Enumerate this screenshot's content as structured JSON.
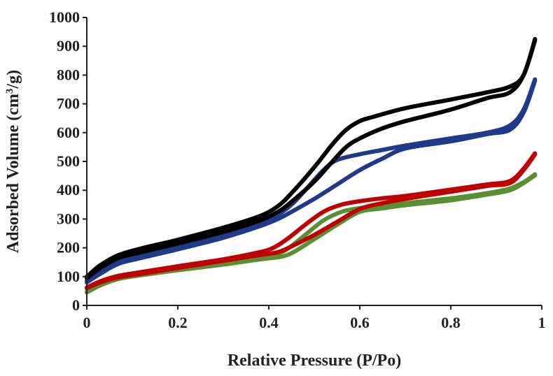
{
  "chart_data": {
    "type": "line",
    "title": "",
    "xlabel": "Relative Pressure (P/Po)",
    "ylabel_parts": [
      "Adsorbed Volume (cm",
      "3",
      "/g)"
    ],
    "xlim": [
      0,
      1
    ],
    "ylim": [
      0,
      1000
    ],
    "x_ticks": [
      "0",
      "0.2",
      "0.4",
      "0.6",
      "0.8",
      "1"
    ],
    "y_ticks": [
      "0",
      "100",
      "200",
      "300",
      "400",
      "500",
      "600",
      "700",
      "800",
      "900",
      "1000"
    ],
    "grid": false,
    "legend": "none",
    "series": [
      {
        "color": "#000000",
        "adsorption": [
          [
            0.0,
            95
          ],
          [
            0.03,
            130
          ],
          [
            0.07,
            165
          ],
          [
            0.12,
            185
          ],
          [
            0.2,
            215
          ],
          [
            0.3,
            255
          ],
          [
            0.38,
            295
          ],
          [
            0.42,
            325
          ],
          [
            0.45,
            360
          ],
          [
            0.5,
            430
          ],
          [
            0.54,
            500
          ],
          [
            0.57,
            550
          ],
          [
            0.6,
            580
          ],
          [
            0.65,
            615
          ],
          [
            0.7,
            640
          ],
          [
            0.8,
            680
          ],
          [
            0.88,
            720
          ],
          [
            0.93,
            740
          ],
          [
            0.96,
            800
          ],
          [
            0.985,
            920
          ]
        ],
        "desorption": [
          [
            0.985,
            925
          ],
          [
            0.96,
            800
          ],
          [
            0.93,
            760
          ],
          [
            0.88,
            740
          ],
          [
            0.8,
            715
          ],
          [
            0.7,
            685
          ],
          [
            0.63,
            655
          ],
          [
            0.6,
            640
          ],
          [
            0.57,
            610
          ],
          [
            0.54,
            560
          ],
          [
            0.5,
            480
          ],
          [
            0.45,
            390
          ],
          [
            0.42,
            345
          ],
          [
            0.38,
            310
          ],
          [
            0.3,
            270
          ],
          [
            0.2,
            228
          ],
          [
            0.12,
            198
          ],
          [
            0.07,
            175
          ],
          [
            0.03,
            140
          ],
          [
            0.0,
            100
          ]
        ]
      },
      {
        "color": "#1f3a8a",
        "adsorption": [
          [
            0.0,
            80
          ],
          [
            0.03,
            110
          ],
          [
            0.07,
            145
          ],
          [
            0.12,
            165
          ],
          [
            0.2,
            195
          ],
          [
            0.3,
            235
          ],
          [
            0.38,
            275
          ],
          [
            0.42,
            300
          ],
          [
            0.45,
            325
          ],
          [
            0.5,
            370
          ],
          [
            0.55,
            420
          ],
          [
            0.6,
            470
          ],
          [
            0.65,
            510
          ],
          [
            0.7,
            545
          ],
          [
            0.8,
            570
          ],
          [
            0.88,
            595
          ],
          [
            0.93,
            610
          ],
          [
            0.96,
            670
          ],
          [
            0.985,
            780
          ]
        ],
        "desorption": [
          [
            0.985,
            785
          ],
          [
            0.96,
            680
          ],
          [
            0.93,
            625
          ],
          [
            0.88,
            600
          ],
          [
            0.8,
            580
          ],
          [
            0.7,
            555
          ],
          [
            0.65,
            540
          ],
          [
            0.6,
            525
          ],
          [
            0.55,
            505
          ],
          [
            0.52,
            470
          ],
          [
            0.48,
            400
          ],
          [
            0.45,
            350
          ],
          [
            0.42,
            315
          ],
          [
            0.38,
            285
          ],
          [
            0.3,
            245
          ],
          [
            0.2,
            205
          ],
          [
            0.12,
            172
          ],
          [
            0.07,
            152
          ],
          [
            0.03,
            118
          ],
          [
            0.0,
            85
          ]
        ]
      },
      {
        "color": "#c00000",
        "adsorption": [
          [
            0.0,
            60
          ],
          [
            0.03,
            80
          ],
          [
            0.07,
            98
          ],
          [
            0.12,
            110
          ],
          [
            0.2,
            130
          ],
          [
            0.3,
            155
          ],
          [
            0.38,
            175
          ],
          [
            0.42,
            185
          ],
          [
            0.45,
            205
          ],
          [
            0.5,
            245
          ],
          [
            0.55,
            290
          ],
          [
            0.6,
            335
          ],
          [
            0.65,
            355
          ],
          [
            0.7,
            370
          ],
          [
            0.8,
            395
          ],
          [
            0.88,
            415
          ],
          [
            0.93,
            425
          ],
          [
            0.96,
            470
          ],
          [
            0.985,
            525
          ]
        ],
        "desorption": [
          [
            0.985,
            528
          ],
          [
            0.96,
            475
          ],
          [
            0.93,
            432
          ],
          [
            0.88,
            420
          ],
          [
            0.8,
            402
          ],
          [
            0.7,
            380
          ],
          [
            0.65,
            372
          ],
          [
            0.6,
            362
          ],
          [
            0.56,
            350
          ],
          [
            0.52,
            325
          ],
          [
            0.48,
            280
          ],
          [
            0.44,
            230
          ],
          [
            0.41,
            200
          ],
          [
            0.38,
            185
          ],
          [
            0.3,
            160
          ],
          [
            0.2,
            136
          ],
          [
            0.12,
            116
          ],
          [
            0.07,
            103
          ],
          [
            0.03,
            84
          ],
          [
            0.0,
            62
          ]
        ]
      },
      {
        "color": "#5b8f32",
        "adsorption": [
          [
            0.0,
            45
          ],
          [
            0.03,
            70
          ],
          [
            0.07,
            92
          ],
          [
            0.12,
            105
          ],
          [
            0.2,
            122
          ],
          [
            0.3,
            142
          ],
          [
            0.38,
            160
          ],
          [
            0.43,
            170
          ],
          [
            0.46,
            190
          ],
          [
            0.5,
            230
          ],
          [
            0.55,
            280
          ],
          [
            0.6,
            325
          ],
          [
            0.65,
            337
          ],
          [
            0.7,
            348
          ],
          [
            0.8,
            365
          ],
          [
            0.88,
            385
          ],
          [
            0.93,
            400
          ],
          [
            0.96,
            425
          ],
          [
            0.985,
            452
          ]
        ],
        "desorption": [
          [
            0.985,
            455
          ],
          [
            0.96,
            428
          ],
          [
            0.93,
            406
          ],
          [
            0.88,
            390
          ],
          [
            0.8,
            372
          ],
          [
            0.7,
            355
          ],
          [
            0.65,
            346
          ],
          [
            0.6,
            338
          ],
          [
            0.56,
            325
          ],
          [
            0.52,
            295
          ],
          [
            0.48,
            245
          ],
          [
            0.44,
            195
          ],
          [
            0.41,
            175
          ],
          [
            0.38,
            167
          ],
          [
            0.3,
            148
          ],
          [
            0.2,
            128
          ],
          [
            0.12,
            110
          ],
          [
            0.07,
            97
          ],
          [
            0.03,
            75
          ],
          [
            0.0,
            48
          ]
        ]
      }
    ]
  }
}
